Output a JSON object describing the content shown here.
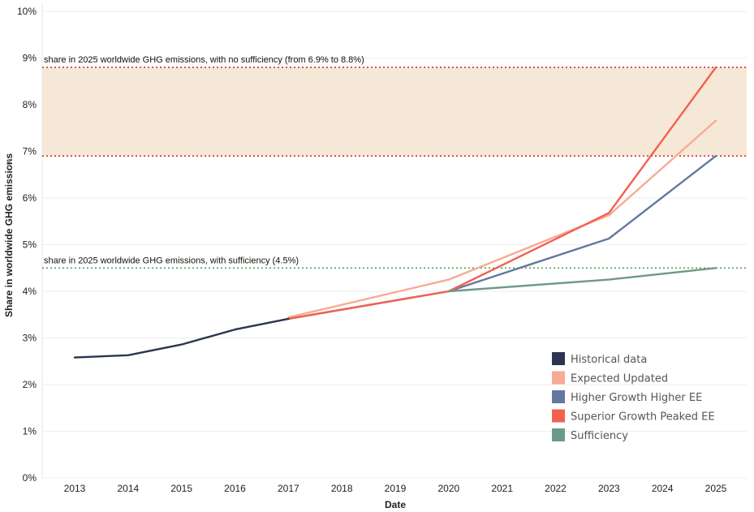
{
  "chart_data": {
    "type": "line",
    "xlabel": "Date",
    "ylabel": "Share in worldwide GHG emissions",
    "ylim": [
      0,
      10
    ],
    "y_ticks": [
      "0%",
      "1%",
      "2%",
      "3%",
      "4%",
      "5%",
      "6%",
      "7%",
      "8%",
      "9%",
      "10%"
    ],
    "categories": [
      "2013",
      "2014",
      "2015",
      "2016",
      "2017",
      "2018",
      "2019",
      "2020",
      "2021",
      "2022",
      "2023",
      "2024",
      "2025"
    ],
    "grid": true,
    "legend_position": "bottom-right",
    "series": [
      {
        "name": "Historical data",
        "color": "#2b3550",
        "x": [
          "2013",
          "2014",
          "2015",
          "2016",
          "2017"
        ],
        "values": [
          2.58,
          2.63,
          2.86,
          3.18,
          3.41
        ]
      },
      {
        "name": "Expected Updated",
        "color": "#f7aa95",
        "x": [
          "2017",
          "2020",
          "2023",
          "2025"
        ],
        "values": [
          3.44,
          4.25,
          5.63,
          7.66
        ]
      },
      {
        "name": "Higher Growth Higher EE",
        "color": "#6278a0",
        "x": [
          "2017",
          "2020",
          "2023",
          "2025"
        ],
        "values": [
          3.41,
          4.0,
          5.13,
          6.9
        ]
      },
      {
        "name": "Superior Growth Peaked EE",
        "color": "#f26150",
        "x": [
          "2017",
          "2020",
          "2023",
          "2025"
        ],
        "values": [
          3.41,
          4.0,
          5.68,
          8.8
        ]
      },
      {
        "name": "Sufficiency",
        "color": "#6d9988",
        "x": [
          "2020",
          "2023",
          "2025"
        ],
        "values": [
          4.0,
          4.25,
          4.5
        ]
      }
    ],
    "bands": [
      {
        "from": 6.9,
        "to": 8.8,
        "color": "#f6e8d6"
      }
    ],
    "reference_lines": [
      {
        "value": 8.8,
        "color": "#d42020"
      },
      {
        "value": 6.9,
        "color": "#d42020"
      },
      {
        "value": 4.5,
        "color": "#4d9a4d"
      }
    ],
    "annotations": [
      {
        "text": "share in 2025 worldwide GHG emissions, with no sufficiency (from 6.9% to 8.8%)",
        "anchor_value": 8.8
      },
      {
        "text": "share in 2025 worldwide GHG emissions, with sufficiency (4.5%)",
        "anchor_value": 4.5
      }
    ]
  }
}
